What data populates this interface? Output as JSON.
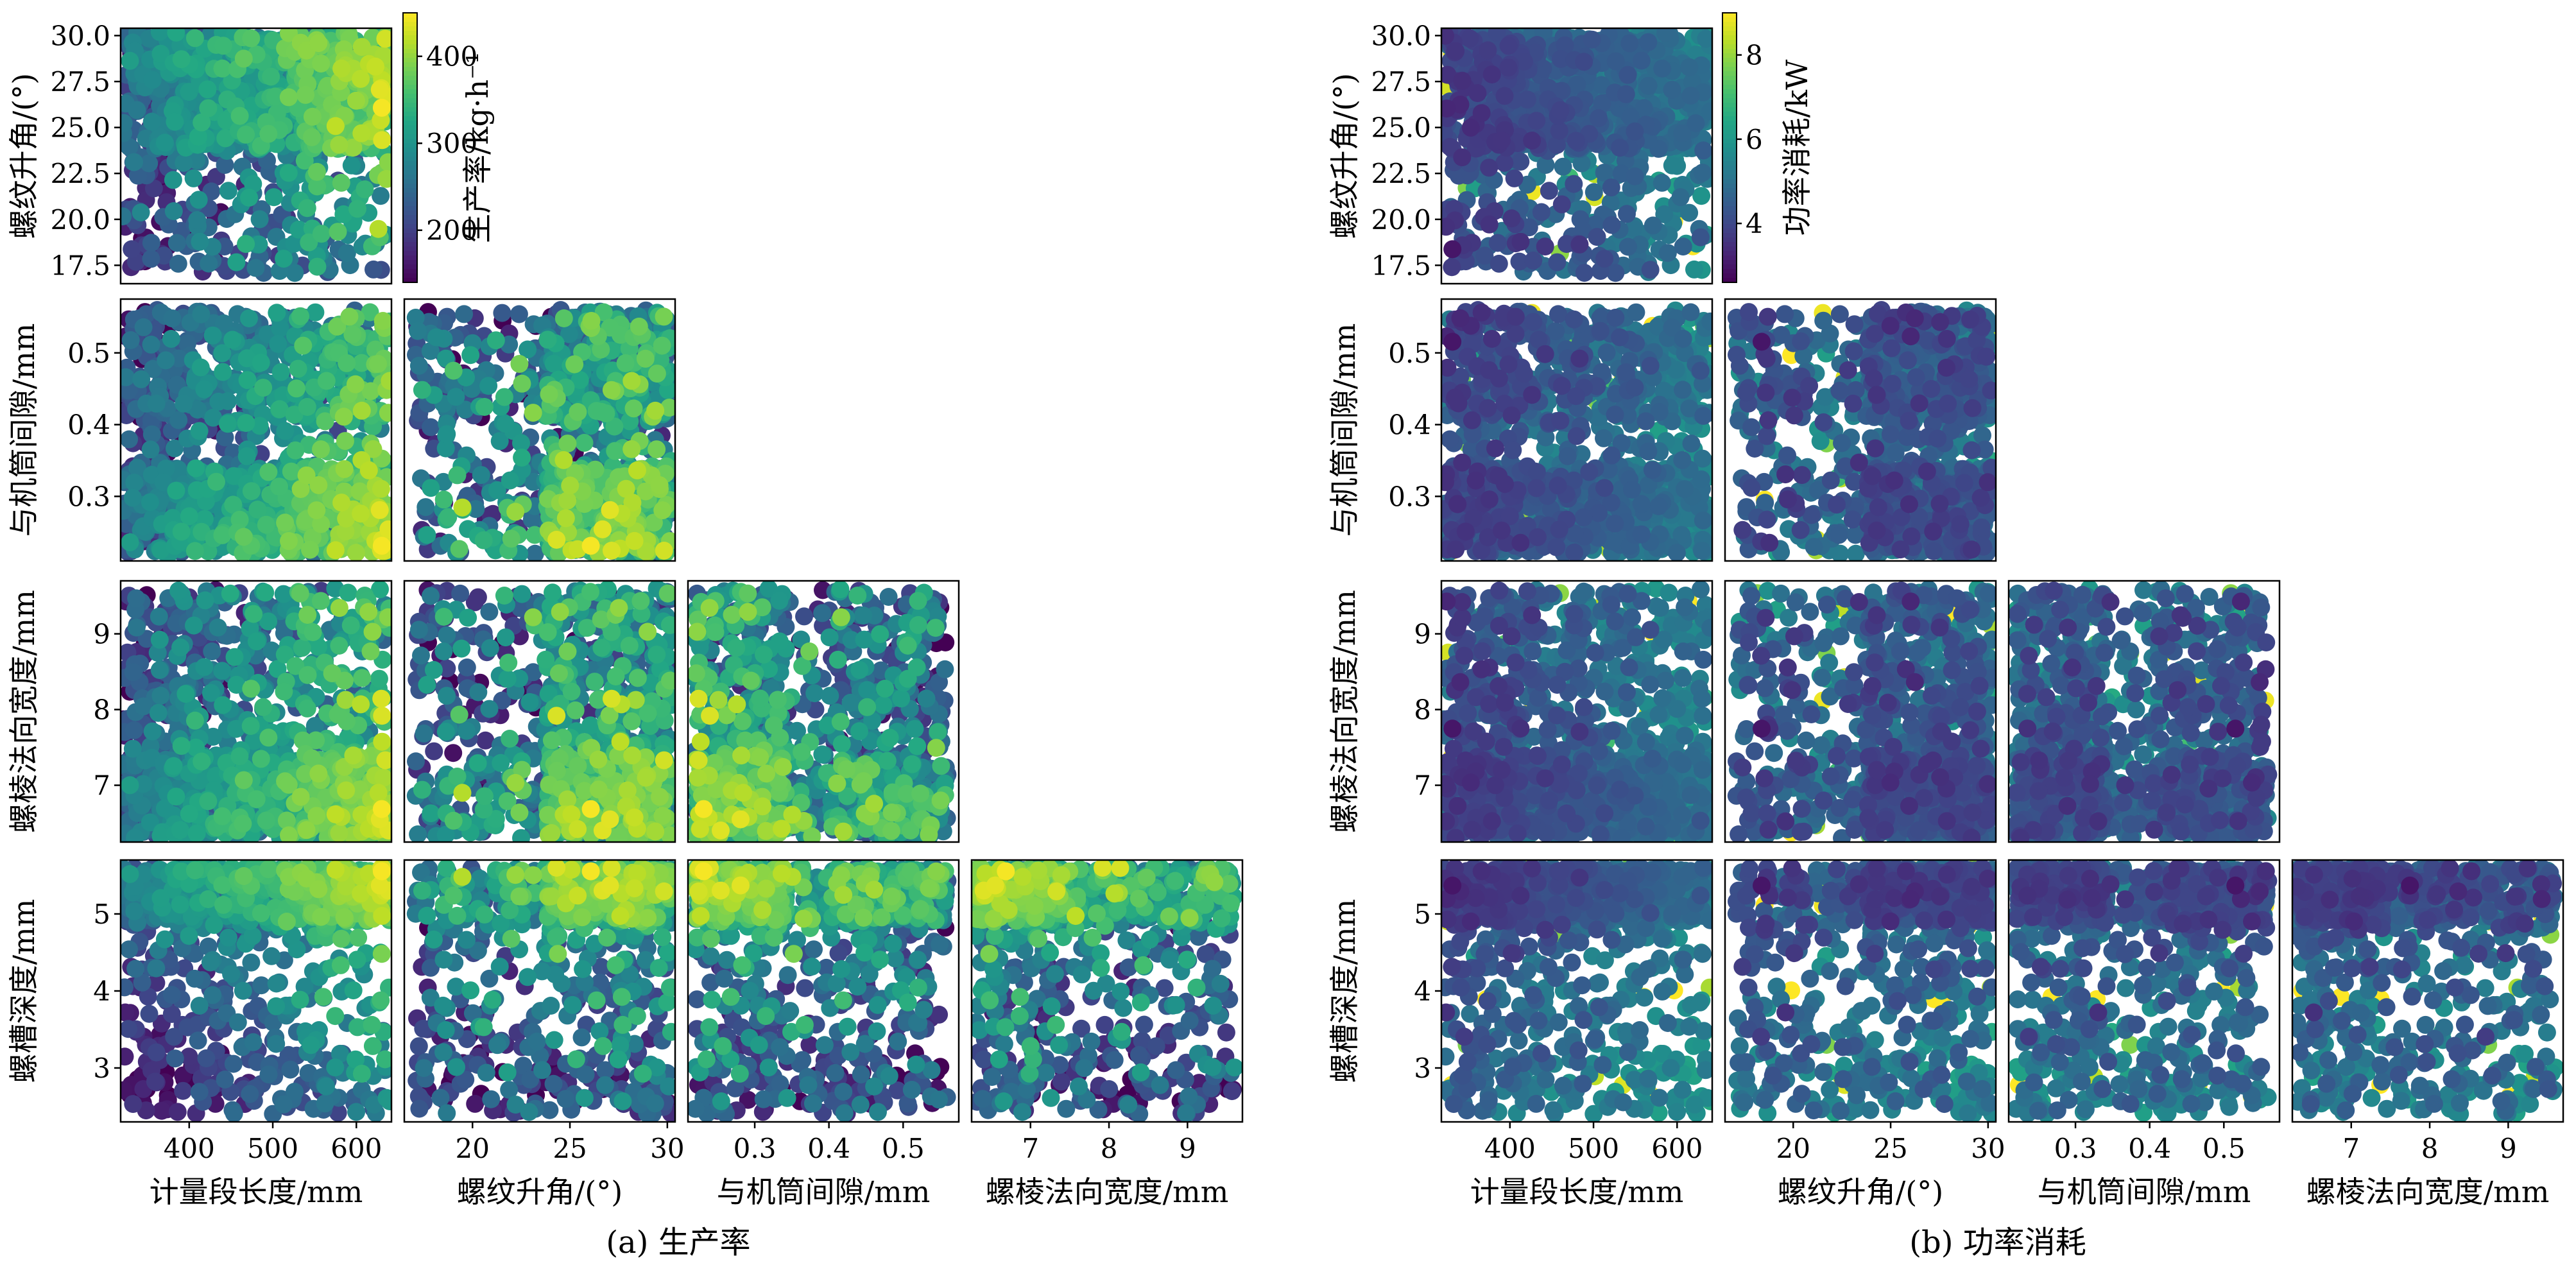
{
  "figure": {
    "panels": [
      {
        "id": "a",
        "caption": "(a) 生产率",
        "colorbar": {
          "label": "生产率/kg·h⁻¹",
          "range": [
            140,
            450
          ],
          "ticks": [
            200,
            300,
            400
          ],
          "tick_labels": [
            "200",
            "300",
            "400"
          ],
          "colormap": "viridis"
        },
        "metric": "productivity"
      },
      {
        "id": "b",
        "caption": "(b) 功率消耗",
        "colorbar": {
          "label": "功率消耗/kW",
          "range": [
            2.6,
            9.0
          ],
          "ticks": [
            4,
            6,
            8
          ],
          "tick_labels": [
            "4",
            "6",
            "8"
          ],
          "colormap": "viridis"
        },
        "metric": "power"
      }
    ],
    "variables": [
      {
        "key": "L",
        "label": "计量段长度/mm",
        "range": [
          318,
          642
        ],
        "ticks": [
          400,
          500,
          600
        ],
        "tick_labels": [
          "400",
          "500",
          "600"
        ]
      },
      {
        "key": "phi",
        "label": "螺纹升角/(°)",
        "range": [
          16.5,
          30.4
        ],
        "ticks": [
          17.5,
          20.0,
          22.5,
          25.0,
          27.5,
          30.0
        ],
        "tick_labels": [
          "17.5",
          "20.0",
          "22.5",
          "25.0",
          "27.5",
          "30.0"
        ],
        "x_ticks": [
          20,
          25,
          30
        ],
        "x_tick_labels": [
          "20",
          "25",
          "30"
        ]
      },
      {
        "key": "delta",
        "label": "与机筒间隙/mm",
        "range": [
          0.21,
          0.575
        ],
        "ticks": [
          0.3,
          0.4,
          0.5
        ],
        "tick_labels": [
          "0.3",
          "0.4",
          "0.5"
        ]
      },
      {
        "key": "e",
        "label": "螺棱法向宽度/mm",
        "range": [
          6.25,
          9.7
        ],
        "ticks": [
          7,
          8,
          9
        ],
        "tick_labels": [
          "7",
          "8",
          "9"
        ]
      },
      {
        "key": "h",
        "label": "螺槽深度/mm",
        "range": [
          2.3,
          5.7
        ],
        "ticks": [
          3,
          4,
          5
        ],
        "tick_labels": [
          "3",
          "4",
          "5"
        ]
      }
    ],
    "grid": false
  },
  "chart_data": [
    {
      "type": "scatter",
      "title": "(a) 生产率",
      "layout": "lower-triangle pair plot (5 variables, 10 panels)",
      "colorbar_label": "生产率/kg·h⁻¹",
      "color_range": [
        140,
        450
      ],
      "variables": [
        "计量段长度/mm",
        "螺纹升角/(°)",
        "与机筒间隙/mm",
        "螺棱法向宽度/mm",
        "螺槽深度/mm"
      ],
      "point_count_approx": 1200
    },
    {
      "type": "scatter",
      "title": "(b) 功率消耗",
      "layout": "lower-triangle pair plot (5 variables, 10 panels)",
      "colorbar_label": "功率消耗/kW",
      "color_range": [
        2.6,
        9.0
      ],
      "variables": [
        "计量段长度/mm",
        "螺纹升角/(°)",
        "与机筒间隙/mm",
        "螺棱法向宽度/mm",
        "螺槽深度/mm"
      ],
      "point_count_approx": 1200
    }
  ]
}
